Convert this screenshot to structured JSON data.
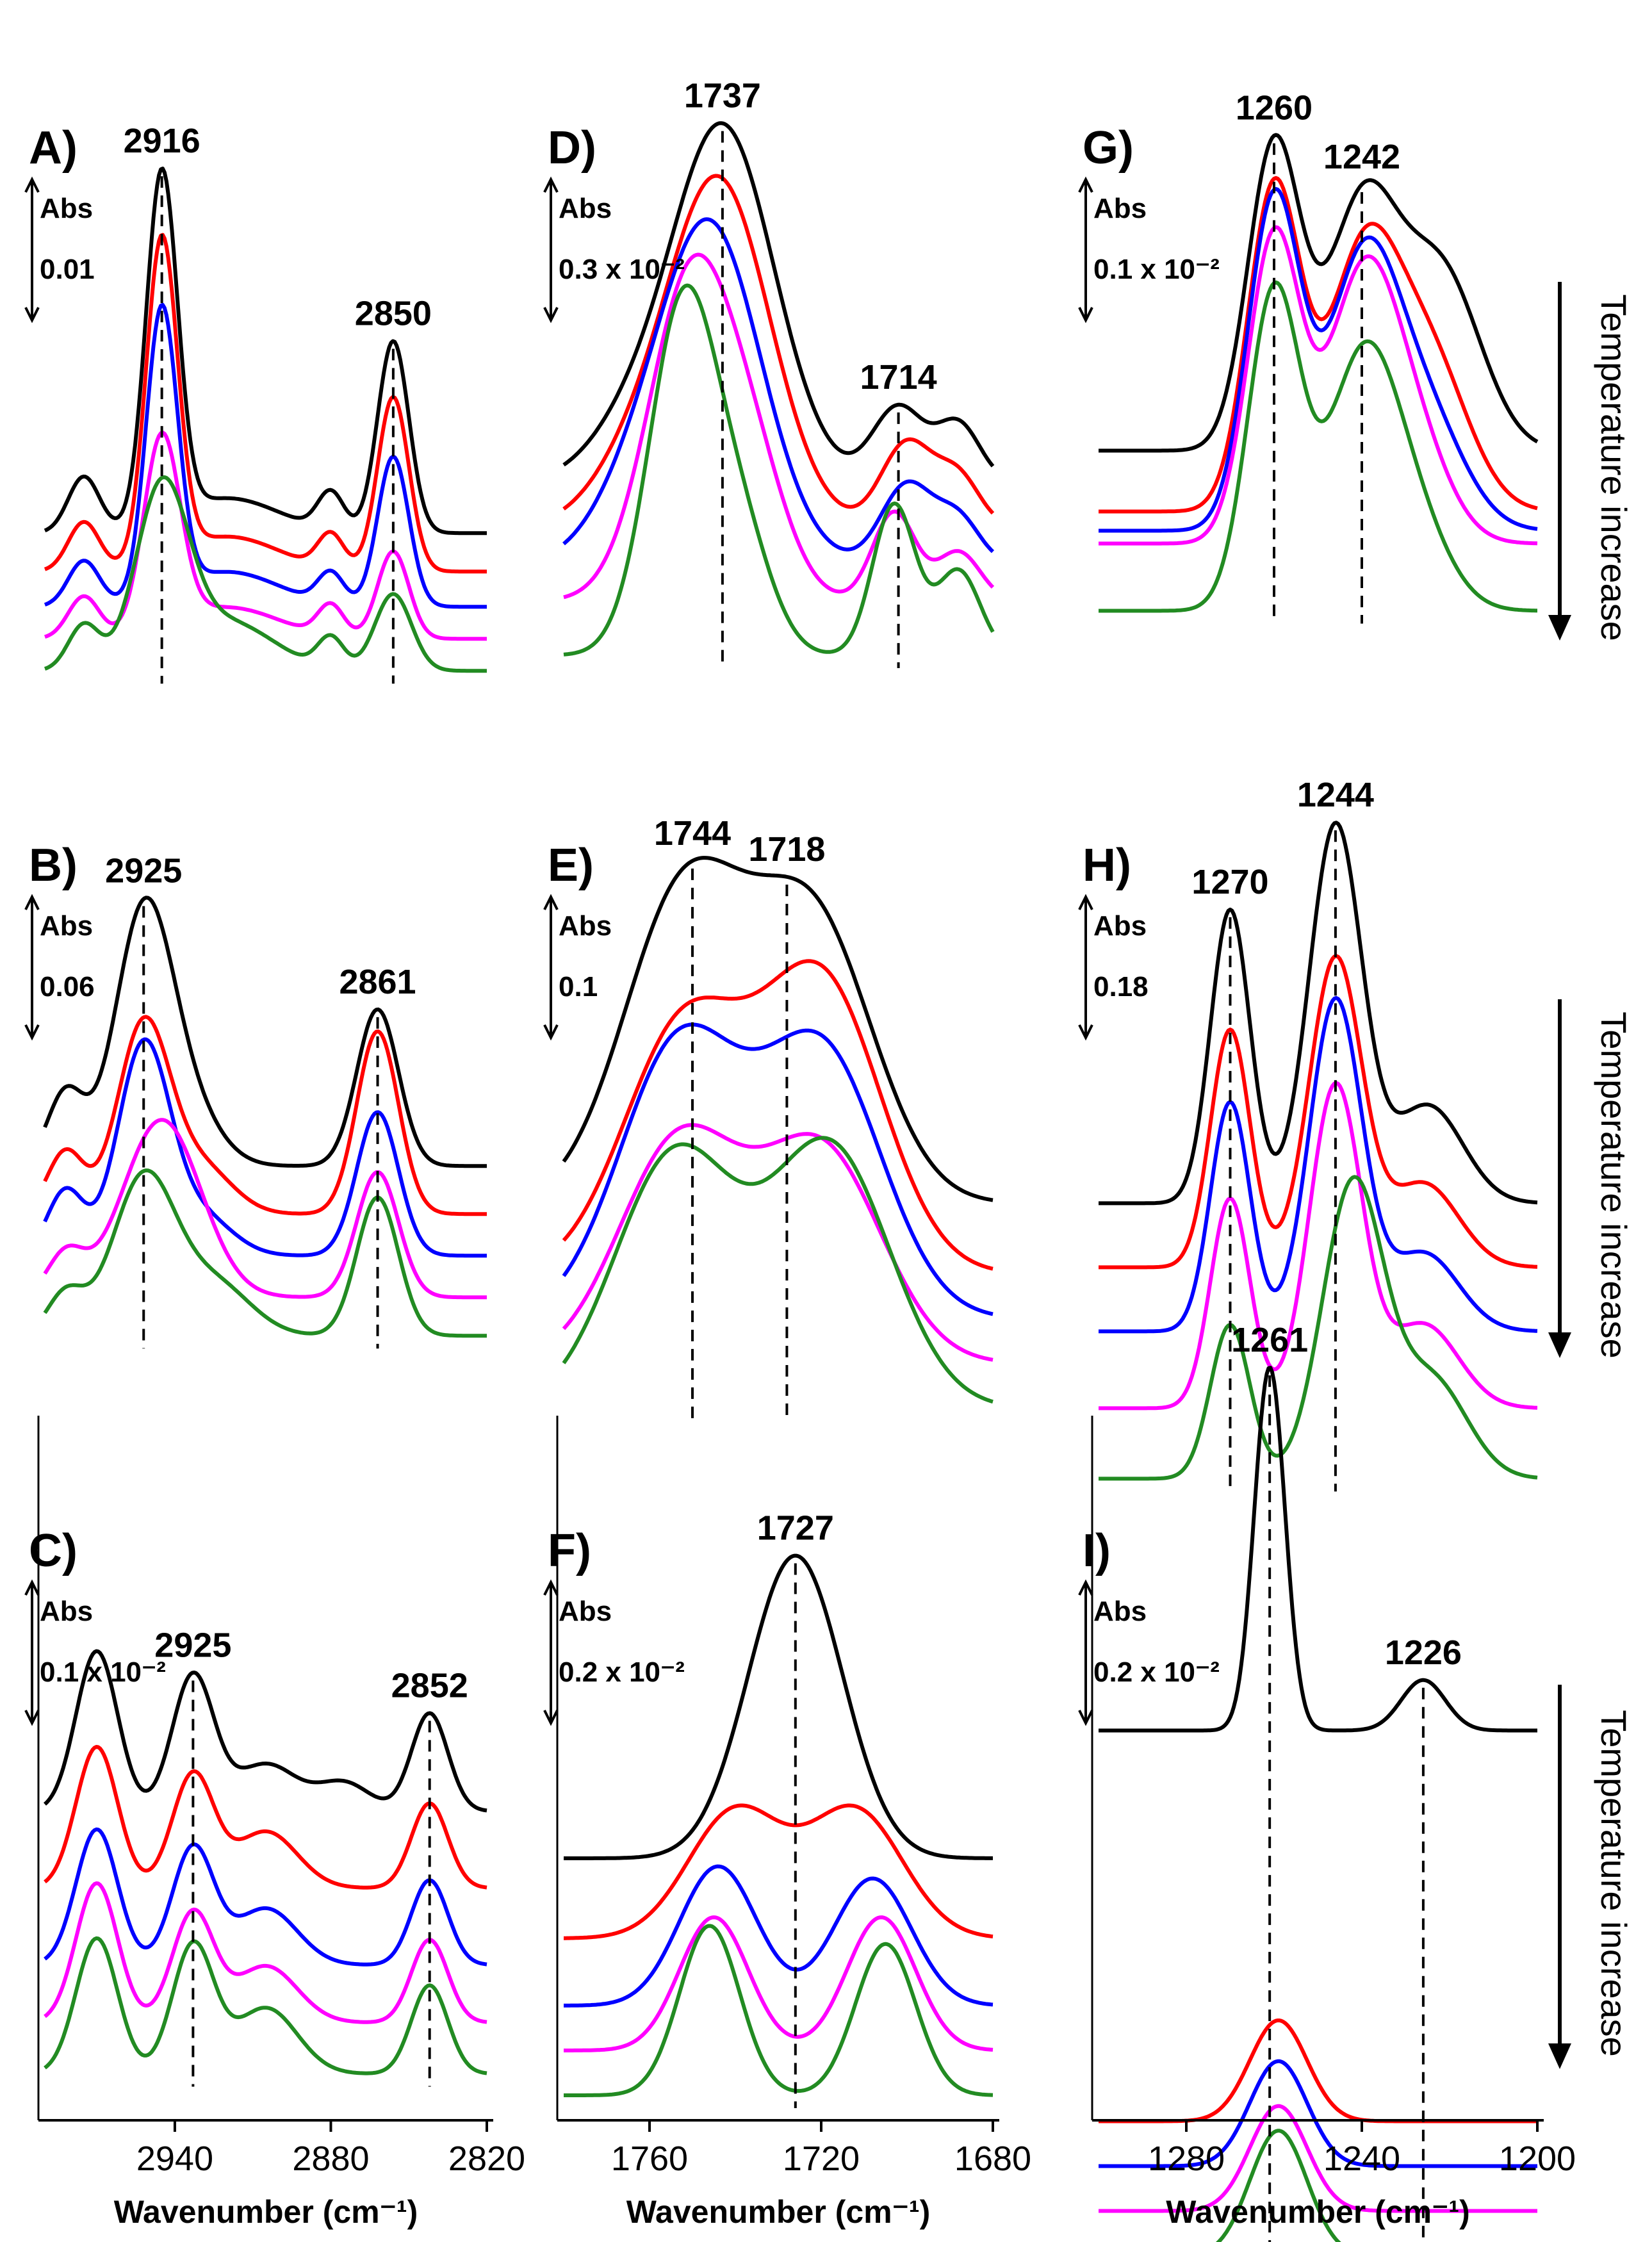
{
  "figure": {
    "side_label": "Temperature increase"
  },
  "chart_data": [
    {
      "id": "A",
      "panel_label": "A)",
      "type": "line",
      "x_range": [
        2990,
        2820
      ],
      "scale_text": [
        "Abs",
        "0.01"
      ],
      "series_colors": [
        "#000000",
        "#ff0000",
        "#0000ff",
        "#ff00ff",
        "#228b22"
      ],
      "peak_labels": [
        {
          "x": 2945,
          "text": "2916"
        },
        {
          "x": 2856,
          "text": "2850"
        }
      ],
      "dashed_markers": [
        2945,
        2856
      ]
    },
    {
      "id": "B",
      "panel_label": "B)",
      "type": "line",
      "x_range": [
        2990,
        2820
      ],
      "scale_text": [
        "Abs",
        "0.06"
      ],
      "series_colors": [
        "#000000",
        "#ff0000",
        "#0000ff",
        "#ff00ff",
        "#228b22"
      ],
      "peak_labels": [
        {
          "x": 2952,
          "text": "2925"
        },
        {
          "x": 2862,
          "text": "2861"
        }
      ],
      "dashed_markers": [
        2952,
        2862
      ]
    },
    {
      "id": "C",
      "panel_label": "C)",
      "type": "line",
      "x_range": [
        2990,
        2820
      ],
      "scale_text": [
        "Abs",
        "0.1 x 10⁻²"
      ],
      "series_colors": [
        "#000000",
        "#ff0000",
        "#0000ff",
        "#ff00ff",
        "#228b22"
      ],
      "peak_labels": [
        {
          "x": 2933,
          "text": "2925"
        },
        {
          "x": 2842,
          "text": "2852"
        }
      ],
      "dashed_markers": [
        2933,
        2842
      ],
      "xlabel": "Wavenumber (cm⁻¹)",
      "x_ticks": [
        2940,
        2880,
        2820
      ]
    },
    {
      "id": "D",
      "panel_label": "D)",
      "type": "line",
      "x_range": [
        1780,
        1680
      ],
      "scale_text": [
        "Abs",
        "0.3 x 10⁻²"
      ],
      "series_colors": [
        "#000000",
        "#ff0000",
        "#0000ff",
        "#ff00ff",
        "#228b22"
      ],
      "peak_labels": [
        {
          "x": 1743,
          "text": "1737"
        },
        {
          "x": 1702,
          "text": "1714"
        }
      ],
      "dashed_markers": [
        1743,
        1702
      ]
    },
    {
      "id": "E",
      "panel_label": "E)",
      "type": "line",
      "x_range": [
        1780,
        1680
      ],
      "scale_text": [
        "Abs",
        "0.1"
      ],
      "series_colors": [
        "#000000",
        "#ff0000",
        "#0000ff",
        "#ff00ff",
        "#228b22"
      ],
      "peak_labels": [
        {
          "x": 1750,
          "text": "1744"
        },
        {
          "x": 1728,
          "text": "1718"
        }
      ],
      "dashed_markers": [
        1750,
        1728
      ]
    },
    {
      "id": "F",
      "panel_label": "F)",
      "type": "line",
      "x_range": [
        1780,
        1680
      ],
      "scale_text": [
        "Abs",
        "0.2 x 10⁻²"
      ],
      "series_colors": [
        "#000000",
        "#ff0000",
        "#0000ff",
        "#ff00ff",
        "#228b22"
      ],
      "peak_labels": [
        {
          "x": 1726,
          "text": "1727"
        }
      ],
      "dashed_markers": [
        1726
      ],
      "xlabel": "Wavenumber (cm⁻¹)",
      "x_ticks": [
        1760,
        1720,
        1680
      ]
    },
    {
      "id": "G",
      "panel_label": "G)",
      "type": "line",
      "x_range": [
        1300,
        1200
      ],
      "scale_text": [
        "Abs",
        "0.1 x 10⁻²"
      ],
      "series_colors": [
        "#000000",
        "#ff0000",
        "#0000ff",
        "#ff00ff",
        "#228b22"
      ],
      "peak_labels": [
        {
          "x": 1260,
          "text": "1260"
        },
        {
          "x": 1240,
          "text": "1242"
        }
      ],
      "dashed_markers": [
        1260,
        1240
      ]
    },
    {
      "id": "H",
      "panel_label": "H)",
      "type": "line",
      "x_range": [
        1300,
        1200
      ],
      "scale_text": [
        "Abs",
        "0.18"
      ],
      "series_colors": [
        "#000000",
        "#ff0000",
        "#0000ff",
        "#ff00ff",
        "#228b22"
      ],
      "peak_labels": [
        {
          "x": 1270,
          "text": "1270"
        },
        {
          "x": 1246,
          "text": "1244"
        }
      ],
      "dashed_markers": [
        1270,
        1246
      ]
    },
    {
      "id": "I",
      "panel_label": "I)",
      "type": "line",
      "x_range": [
        1300,
        1200
      ],
      "scale_text": [
        "Abs",
        "0.2 x 10⁻²"
      ],
      "series_colors": [
        "#000000",
        "#ff0000",
        "#0000ff",
        "#ff00ff",
        "#228b22"
      ],
      "peak_labels": [
        {
          "x": 1261,
          "text": "1261"
        },
        {
          "x": 1226,
          "text": "1226"
        }
      ],
      "dashed_markers": [
        1261,
        1226
      ],
      "xlabel": "Wavenumber (cm⁻¹)",
      "x_ticks": [
        1280,
        1240,
        1200
      ]
    }
  ]
}
